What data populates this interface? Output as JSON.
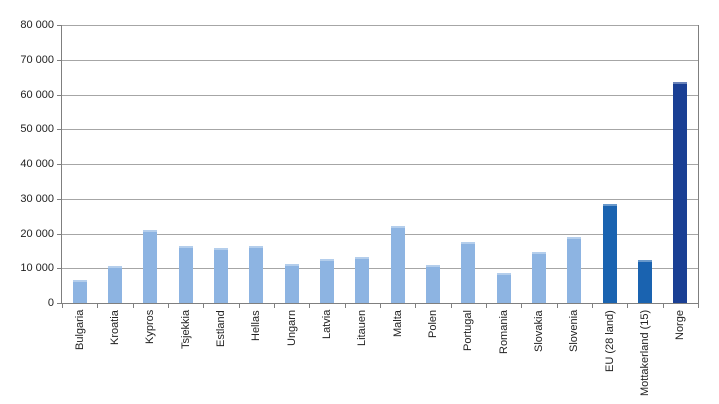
{
  "chart_data": {
    "type": "bar",
    "title": "",
    "xlabel": "",
    "ylabel": "",
    "ylim": [
      0,
      80000
    ],
    "yticks": [
      0,
      10000,
      20000,
      30000,
      40000,
      50000,
      60000,
      70000,
      80000
    ],
    "ytick_labels": [
      "0",
      "10 000",
      "20 000",
      "30 000",
      "40 000",
      "50 000",
      "60 000",
      "70 000",
      "80 000"
    ],
    "grid": true,
    "legend": null,
    "categories": [
      "Bulgaria",
      "Kroatia",
      "Kypros",
      "Tsjekkia",
      "Estland",
      "Hellas",
      "Ungarn",
      "Latvia",
      "Litauen",
      "Malta",
      "Polen",
      "Portugal",
      "Romania",
      "Slovakia",
      "Slovenia",
      "EU (28 land)",
      "Mottakerland (15)",
      "Norge"
    ],
    "values": [
      6500,
      10700,
      20900,
      16300,
      15700,
      16300,
      11200,
      12800,
      13200,
      22200,
      10900,
      17600,
      8500,
      14700,
      19100,
      28600,
      12400,
      63700
    ],
    "colors": [
      "#8db4e2",
      "#8db4e2",
      "#8db4e2",
      "#8db4e2",
      "#8db4e2",
      "#8db4e2",
      "#8db4e2",
      "#8db4e2",
      "#8db4e2",
      "#8db4e2",
      "#8db4e2",
      "#8db4e2",
      "#8db4e2",
      "#8db4e2",
      "#8db4e2",
      "#1a63b0",
      "#1a63b0",
      "#1a3f94"
    ]
  }
}
